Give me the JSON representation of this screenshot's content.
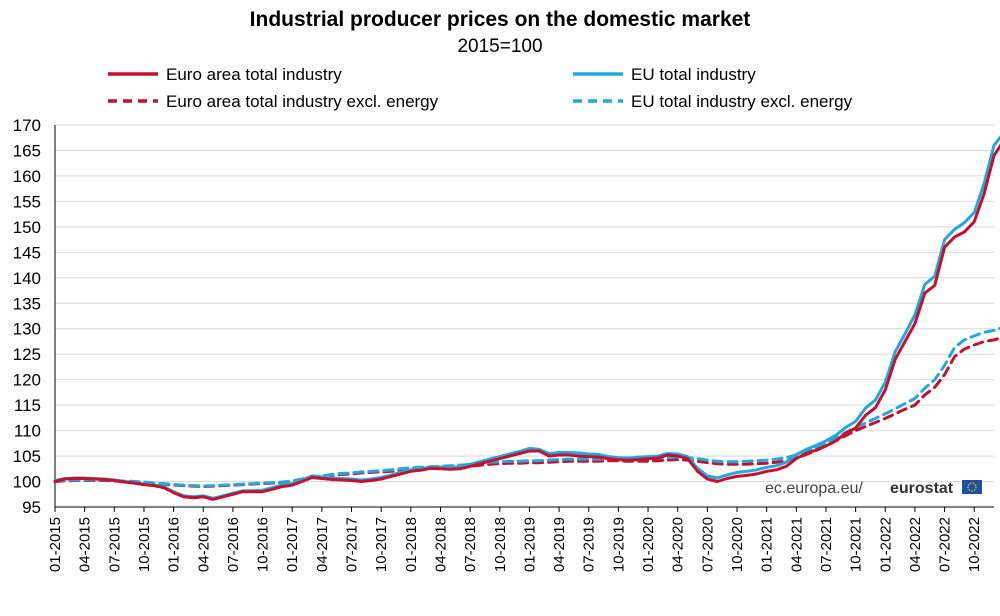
{
  "chart_data": {
    "type": "line",
    "title": "Industrial producer prices on the domestic market",
    "subtitle": "2015=100",
    "xlabel": "",
    "ylabel": "",
    "ylim": [
      95,
      170
    ],
    "yticks": [
      95,
      100,
      105,
      110,
      115,
      120,
      125,
      130,
      135,
      140,
      145,
      150,
      155,
      160,
      165,
      170
    ],
    "x_tick_labels": [
      "01-2015",
      "04-2015",
      "07-2015",
      "10-2015",
      "01-2016",
      "04-2016",
      "07-2016",
      "10-2016",
      "01-2017",
      "04-2017",
      "07-2017",
      "10-2017",
      "01-2018",
      "04-2018",
      "07-2018",
      "10-2018",
      "01-2019",
      "04-2019",
      "07-2019",
      "10-2019",
      "01-2020",
      "04-2020",
      "07-2020",
      "10-2020",
      "01-2021",
      "04-2021",
      "07-2021",
      "10-2021",
      "01-2022",
      "04-2022",
      "07-2022",
      "10-2022"
    ],
    "grid": true,
    "legend_position": "top",
    "x_start": "01-2015",
    "x_end": "10-2022",
    "series": [
      {
        "name": "Euro area total industry",
        "color": "#c8102e",
        "dashed": false,
        "values": [
          100.0,
          100.5,
          100.6,
          100.6,
          100.5,
          100.4,
          100.2,
          99.9,
          99.7,
          99.4,
          99.2,
          98.8,
          97.8,
          97.0,
          96.8,
          97.0,
          96.5,
          97.0,
          97.5,
          98.0,
          98.0,
          98.0,
          98.5,
          99.0,
          99.3,
          100.0,
          100.8,
          100.6,
          100.4,
          100.3,
          100.2,
          100.0,
          100.2,
          100.5,
          101.0,
          101.5,
          102.0,
          102.2,
          102.6,
          102.5,
          102.4,
          102.5,
          103.0,
          103.5,
          104.0,
          104.5,
          105.0,
          105.5,
          106.0,
          106.0,
          105.0,
          105.2,
          105.2,
          105.0,
          104.9,
          104.8,
          104.5,
          104.3,
          104.2,
          104.3,
          104.5,
          104.6,
          105.2,
          105.0,
          104.5,
          102.0,
          100.5,
          100.0,
          100.6,
          101.0,
          101.2,
          101.5,
          102.0,
          102.3,
          103.0,
          104.5,
          105.5,
          106.2,
          107.0,
          108.0,
          109.5,
          110.5,
          113.0,
          114.5,
          118.0,
          124.0,
          127.5,
          131.0,
          137.0,
          138.5,
          146.0,
          148.0,
          149.0,
          151.0,
          156.5,
          164.0,
          167.0,
          162.5
        ]
      },
      {
        "name": "EU total industry",
        "color": "#1fa9df",
        "dashed": false,
        "values": [
          100.2,
          100.6,
          100.7,
          100.7,
          100.6,
          100.5,
          100.3,
          100.0,
          99.8,
          99.5,
          99.3,
          99.0,
          98.0,
          97.2,
          97.0,
          97.2,
          96.7,
          97.2,
          97.7,
          98.2,
          98.2,
          98.3,
          98.8,
          99.3,
          99.6,
          100.3,
          101.1,
          100.9,
          100.7,
          100.6,
          100.5,
          100.3,
          100.5,
          100.8,
          101.3,
          101.8,
          102.3,
          102.5,
          102.9,
          102.8,
          102.8,
          102.9,
          103.4,
          103.9,
          104.4,
          104.9,
          105.4,
          105.9,
          106.5,
          106.3,
          105.5,
          105.7,
          105.7,
          105.6,
          105.4,
          105.3,
          104.9,
          104.7,
          104.6,
          104.8,
          104.9,
          105.0,
          105.5,
          105.4,
          104.9,
          102.6,
          101.1,
          100.7,
          101.3,
          101.8,
          102.0,
          102.3,
          102.8,
          103.1,
          103.8,
          105.3,
          106.3,
          107.1,
          108.0,
          109.1,
          110.6,
          111.8,
          114.4,
          116.0,
          119.5,
          125.5,
          129.0,
          132.7,
          138.7,
          140.3,
          147.5,
          149.5,
          150.8,
          152.8,
          158.5,
          166.0,
          168.5,
          164.0
        ]
      },
      {
        "name": "Euro area total industry excl. energy",
        "color": "#c8102e",
        "dashed": true,
        "values": [
          100.0,
          100.1,
          100.2,
          100.2,
          100.2,
          100.2,
          100.1,
          100.0,
          99.9,
          99.8,
          99.6,
          99.5,
          99.3,
          99.2,
          99.1,
          99.0,
          99.1,
          99.2,
          99.3,
          99.4,
          99.5,
          99.6,
          99.7,
          99.8,
          100.0,
          100.4,
          100.8,
          101.0,
          101.2,
          101.4,
          101.5,
          101.7,
          101.8,
          101.9,
          102.0,
          102.2,
          102.4,
          102.5,
          102.6,
          102.7,
          102.8,
          102.9,
          103.0,
          103.2,
          103.4,
          103.5,
          103.6,
          103.6,
          103.7,
          103.7,
          103.8,
          103.9,
          104.0,
          104.0,
          104.0,
          104.0,
          104.1,
          104.1,
          104.0,
          104.0,
          104.0,
          104.1,
          104.2,
          104.3,
          104.2,
          104.0,
          103.7,
          103.5,
          103.4,
          103.4,
          103.4,
          103.5,
          103.6,
          103.8,
          104.1,
          104.6,
          105.3,
          106.1,
          107.0,
          108.0,
          109.0,
          110.0,
          110.8,
          111.6,
          112.4,
          113.3,
          114.2,
          115.0,
          117.0,
          118.5,
          121.0,
          124.5,
          126.0,
          126.8,
          127.5,
          127.8,
          128.4,
          129.0
        ]
      },
      {
        "name": "EU total industry excl. energy",
        "color": "#1fa9df",
        "dashed": true,
        "values": [
          100.1,
          100.2,
          100.3,
          100.3,
          100.3,
          100.3,
          100.2,
          100.1,
          100.0,
          99.9,
          99.7,
          99.6,
          99.4,
          99.3,
          99.2,
          99.1,
          99.2,
          99.3,
          99.4,
          99.5,
          99.6,
          99.7,
          99.8,
          99.9,
          100.1,
          100.5,
          100.9,
          101.1,
          101.4,
          101.6,
          101.7,
          101.9,
          102.0,
          102.1,
          102.3,
          102.5,
          102.7,
          102.8,
          102.9,
          103.0,
          103.1,
          103.2,
          103.4,
          103.6,
          103.8,
          103.9,
          104.0,
          104.0,
          104.1,
          104.1,
          104.2,
          104.3,
          104.4,
          104.4,
          104.4,
          104.4,
          104.5,
          104.5,
          104.5,
          104.5,
          104.5,
          104.6,
          104.7,
          104.8,
          104.7,
          104.5,
          104.2,
          104.0,
          103.9,
          103.9,
          104.0,
          104.1,
          104.2,
          104.4,
          104.7,
          105.2,
          105.9,
          106.7,
          107.6,
          108.6,
          109.6,
          110.6,
          111.5,
          112.4,
          113.3,
          114.3,
          115.3,
          116.3,
          118.3,
          120.0,
          122.8,
          126.3,
          127.8,
          128.6,
          129.3,
          129.7,
          130.3,
          131.0
        ]
      }
    ]
  },
  "source": {
    "site": "ec.europa.eu/",
    "brand": "eurostat"
  },
  "colors": {
    "grid": "#d9d9d9",
    "axis": "#000000",
    "eu_flag": "#1f4fa0"
  }
}
